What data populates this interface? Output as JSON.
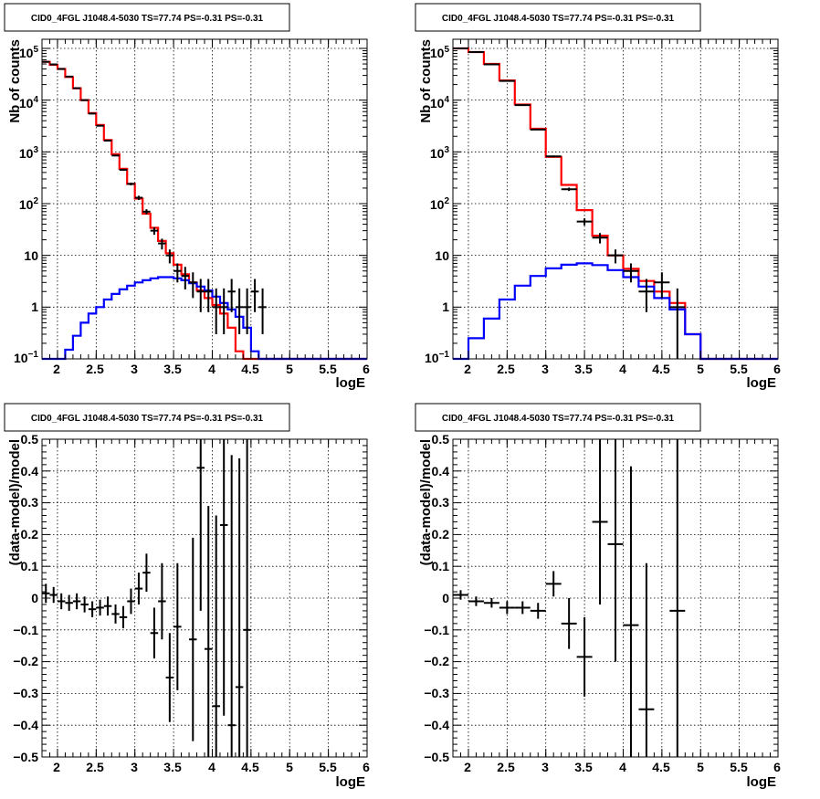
{
  "chart_data": [
    {
      "type": "histogram",
      "title": "CID0_4FGL J1048.4-5030 TS=77.74 PS=-0.31 PS=-0.31",
      "xlabel": "logE",
      "ylabel": "Nb of counts",
      "xlim": [
        1.8,
        6.0
      ],
      "ylim": [
        0.1,
        150000
      ],
      "yscale": "log",
      "grid": true,
      "x_ticks": [
        "2",
        "2.5",
        "3",
        "3.5",
        "4",
        "4.5",
        "5",
        "5.5",
        "6"
      ],
      "y_ticks": [
        {
          "value": 0.1,
          "base": "10",
          "exp": "−1"
        },
        {
          "value": 1,
          "base": "1",
          "exp": ""
        },
        {
          "value": 10,
          "base": "10",
          "exp": ""
        },
        {
          "value": 100,
          "base": "10",
          "exp": "2"
        },
        {
          "value": 1000,
          "base": "10",
          "exp": "3"
        },
        {
          "value": 10000,
          "base": "10",
          "exp": "4"
        },
        {
          "value": 100000,
          "base": "10",
          "exp": "5"
        }
      ],
      "bin_edges_start": 1.8,
      "bin_width": 0.1,
      "series": [
        {
          "color": "#ff0000",
          "values": [
            55000,
            48000,
            40000,
            28000,
            17000,
            10000,
            5600,
            3300,
            1700,
            900,
            470,
            240,
            125,
            64,
            34,
            19,
            11,
            6.6,
            4.3,
            3.0,
            2.1,
            1.5,
            1.1,
            0.75,
            0.4,
            0.14,
            0.1,
            0.1,
            0.1,
            0.1,
            0.1,
            0.1,
            0.1,
            0.1,
            0.1,
            0.1,
            0.1,
            0.1,
            0.1,
            0.1,
            0.1,
            0.1
          ]
        },
        {
          "color": "#0000ff",
          "values": [
            0.1,
            0.1,
            0.1,
            0.15,
            0.28,
            0.5,
            0.75,
            1.0,
            1.4,
            1.8,
            2.2,
            2.6,
            3.0,
            3.3,
            3.6,
            3.8,
            3.8,
            3.6,
            3.3,
            2.9,
            2.5,
            2.1,
            1.6,
            1.2,
            0.9,
            0.65,
            0.4,
            0.14,
            0.1,
            0.1,
            0.1,
            0.1,
            0.1,
            0.1,
            0.1,
            0.1,
            0.1,
            0.1,
            0.1,
            0.1,
            0.1,
            0.1
          ]
        }
      ],
      "data_points": [
        {
          "x": 1.85,
          "y": 55000,
          "ylo": 54500,
          "yhi": 55500
        },
        {
          "x": 1.95,
          "y": 49000,
          "ylo": 48500,
          "yhi": 49500
        },
        {
          "x": 2.05,
          "y": 40000,
          "ylo": 39600,
          "yhi": 40400
        },
        {
          "x": 2.15,
          "y": 28500,
          "ylo": 28200,
          "yhi": 28800
        },
        {
          "x": 2.25,
          "y": 17000,
          "ylo": 16800,
          "yhi": 17200
        },
        {
          "x": 2.35,
          "y": 10000,
          "ylo": 9900,
          "yhi": 10100
        },
        {
          "x": 2.45,
          "y": 5500,
          "ylo": 5420,
          "yhi": 5580
        },
        {
          "x": 2.55,
          "y": 3200,
          "ylo": 3140,
          "yhi": 3260
        },
        {
          "x": 2.65,
          "y": 1650,
          "ylo": 1610,
          "yhi": 1690
        },
        {
          "x": 2.75,
          "y": 850,
          "ylo": 820,
          "yhi": 880
        },
        {
          "x": 2.85,
          "y": 450,
          "ylo": 430,
          "yhi": 470
        },
        {
          "x": 2.95,
          "y": 240,
          "ylo": 225,
          "yhi": 255
        },
        {
          "x": 3.05,
          "y": 130,
          "ylo": 118,
          "yhi": 142
        },
        {
          "x": 3.15,
          "y": 70,
          "ylo": 62,
          "yhi": 78
        },
        {
          "x": 3.25,
          "y": 30,
          "ylo": 25,
          "yhi": 35
        },
        {
          "x": 3.35,
          "y": 17,
          "ylo": 13,
          "yhi": 21
        },
        {
          "x": 3.45,
          "y": 10,
          "ylo": 7,
          "yhi": 13
        },
        {
          "x": 3.55,
          "y": 5,
          "ylo": 3,
          "yhi": 7
        },
        {
          "x": 3.65,
          "y": 4,
          "ylo": 2.2,
          "yhi": 6
        },
        {
          "x": 3.75,
          "y": 3,
          "ylo": 1.5,
          "yhi": 4.7
        },
        {
          "x": 3.85,
          "y": 2,
          "ylo": 0.8,
          "yhi": 3.5
        },
        {
          "x": 3.95,
          "y": 2,
          "ylo": 0.8,
          "yhi": 3.5
        },
        {
          "x": 4.05,
          "y": 1,
          "ylo": 0.3,
          "yhi": 2.3
        },
        {
          "x": 4.15,
          "y": 1,
          "ylo": 0.3,
          "yhi": 2.3
        },
        {
          "x": 4.25,
          "y": 2,
          "ylo": 0.8,
          "yhi": 3.5
        },
        {
          "x": 4.35,
          "y": 1,
          "ylo": 0.3,
          "yhi": 2.3
        },
        {
          "x": 4.45,
          "y": 1,
          "ylo": 0.3,
          "yhi": 2.3
        },
        {
          "x": 4.55,
          "y": 2,
          "ylo": 0.8,
          "yhi": 3.5
        },
        {
          "x": 4.65,
          "y": 1,
          "ylo": 0.3,
          "yhi": 2.3
        }
      ],
      "data_half_width": 0.05
    },
    {
      "type": "histogram",
      "title": "CID0_4FGL J1048.4-5030 TS=77.74 PS=-0.31 PS=-0.31",
      "xlabel": "logE",
      "ylabel": "Nb of counts",
      "xlim": [
        1.8,
        6.0
      ],
      "ylim": [
        0.1,
        150000
      ],
      "yscale": "log",
      "grid": true,
      "x_ticks": [
        "2",
        "2.5",
        "3",
        "3.5",
        "4",
        "4.5",
        "5",
        "5.5",
        "6"
      ],
      "y_ticks": [
        {
          "value": 0.1,
          "base": "10",
          "exp": "−1"
        },
        {
          "value": 1,
          "base": "1",
          "exp": ""
        },
        {
          "value": 10,
          "base": "10",
          "exp": ""
        },
        {
          "value": 100,
          "base": "10",
          "exp": "2"
        },
        {
          "value": 1000,
          "base": "10",
          "exp": "3"
        },
        {
          "value": 10000,
          "base": "10",
          "exp": "4"
        },
        {
          "value": 100000,
          "base": "10",
          "exp": "5"
        }
      ],
      "bin_edges_start": 1.8,
      "bin_width": 0.2,
      "series": [
        {
          "color": "#ff0000",
          "values": [
            100000,
            85000,
            50000,
            24000,
            8200,
            2800,
            800,
            230,
            75,
            24,
            10,
            5.5,
            3.2,
            2.0,
            1.2,
            0.3,
            0.1,
            0.1,
            0.1,
            0.1,
            0.1
          ]
        },
        {
          "color": "#0000ff",
          "values": [
            0.1,
            0.25,
            0.6,
            1.4,
            2.6,
            4.0,
            5.6,
            6.6,
            7.0,
            6.5,
            5.2,
            3.8,
            2.5,
            1.5,
            0.9,
            0.3,
            0.1,
            0.1,
            0.1,
            0.1,
            0.1
          ]
        }
      ],
      "data_points": [
        {
          "x": 1.9,
          "y": 100000,
          "ylo": 99500,
          "yhi": 100500
        },
        {
          "x": 2.1,
          "y": 85000,
          "ylo": 84500,
          "yhi": 85500
        },
        {
          "x": 2.3,
          "y": 49000,
          "ylo": 48600,
          "yhi": 49400
        },
        {
          "x": 2.5,
          "y": 23500,
          "ylo": 23200,
          "yhi": 23800
        },
        {
          "x": 2.7,
          "y": 8000,
          "ylo": 7900,
          "yhi": 8100
        },
        {
          "x": 2.9,
          "y": 2700,
          "ylo": 2650,
          "yhi": 2750
        },
        {
          "x": 3.1,
          "y": 820,
          "ylo": 790,
          "yhi": 850
        },
        {
          "x": 3.3,
          "y": 190,
          "ylo": 176,
          "yhi": 204
        },
        {
          "x": 3.5,
          "y": 45,
          "ylo": 38,
          "yhi": 52
        },
        {
          "x": 3.7,
          "y": 22,
          "ylo": 17,
          "yhi": 27
        },
        {
          "x": 3.9,
          "y": 10,
          "ylo": 7,
          "yhi": 13
        },
        {
          "x": 4.1,
          "y": 5,
          "ylo": 3,
          "yhi": 7
        },
        {
          "x": 4.3,
          "y": 2,
          "ylo": 0.8,
          "yhi": 3.5
        },
        {
          "x": 4.5,
          "y": 3,
          "ylo": 1.5,
          "yhi": 4.7
        },
        {
          "x": 4.7,
          "y": 1,
          "ylo": 0.1,
          "yhi": 2.3
        }
      ],
      "data_half_width": 0.1
    },
    {
      "type": "scatter",
      "title": "CID0_4FGL J1048.4-5030 TS=77.74 PS=-0.31 PS=-0.31",
      "xlabel": "logE",
      "ylabel": "(data-model)/model",
      "xlim": [
        1.8,
        6.0
      ],
      "ylim": [
        -0.5,
        0.5
      ],
      "yscale": "linear",
      "grid": true,
      "x_ticks": [
        "2",
        "2.5",
        "3",
        "3.5",
        "4",
        "4.5",
        "5",
        "5.5",
        "6"
      ],
      "y_ticks": [
        "−0.5",
        "−0.4",
        "−0.3",
        "−0.2",
        "−0.1",
        "0",
        "0.1",
        "0.2",
        "0.3",
        "0.4",
        "0.5"
      ],
      "data_half_width": 0.05,
      "data_points": [
        {
          "x": 1.85,
          "y": 0.015,
          "err": 0.03
        },
        {
          "x": 1.95,
          "y": 0.01,
          "err": 0.025
        },
        {
          "x": 2.05,
          "y": -0.01,
          "err": 0.025
        },
        {
          "x": 2.15,
          "y": -0.015,
          "err": 0.025
        },
        {
          "x": 2.25,
          "y": -0.01,
          "err": 0.025
        },
        {
          "x": 2.35,
          "y": -0.02,
          "err": 0.025
        },
        {
          "x": 2.45,
          "y": -0.035,
          "err": 0.025
        },
        {
          "x": 2.55,
          "y": -0.03,
          "err": 0.025
        },
        {
          "x": 2.65,
          "y": -0.025,
          "err": 0.03
        },
        {
          "x": 2.75,
          "y": -0.05,
          "err": 0.03
        },
        {
          "x": 2.85,
          "y": -0.06,
          "err": 0.035
        },
        {
          "x": 2.95,
          "y": -0.01,
          "err": 0.04
        },
        {
          "x": 3.05,
          "y": 0.03,
          "err": 0.05
        },
        {
          "x": 3.15,
          "y": 0.08,
          "err": 0.06
        },
        {
          "x": 3.25,
          "y": -0.11,
          "err": 0.08
        },
        {
          "x": 3.35,
          "y": -0.01,
          "err": 0.12
        },
        {
          "x": 3.45,
          "y": -0.25,
          "err": 0.14
        },
        {
          "x": 3.55,
          "y": -0.09,
          "err": 0.2
        },
        {
          "x": 3.75,
          "y": -0.13,
          "err": 0.32
        },
        {
          "x": 3.85,
          "y": 0.41,
          "err": 0.45
        },
        {
          "x": 3.95,
          "y": -0.16,
          "err": 0.45
        },
        {
          "x": 4.05,
          "y": -0.34,
          "err": 0.6
        },
        {
          "x": 4.15,
          "y": 0.23,
          "err": 0.6
        },
        {
          "x": 4.25,
          "y": -0.4,
          "err": 0.85
        },
        {
          "x": 4.35,
          "y": -0.28,
          "err": 0.72
        },
        {
          "x": 4.45,
          "y": -0.1,
          "err": 1.0
        }
      ]
    },
    {
      "type": "scatter",
      "title": "CID0_4FGL J1048.4-5030 TS=77.74 PS=-0.31 PS=-0.31",
      "xlabel": "logE",
      "ylabel": "(data-model)/model",
      "xlim": [
        1.8,
        6.0
      ],
      "ylim": [
        -0.5,
        0.5
      ],
      "yscale": "linear",
      "grid": true,
      "x_ticks": [
        "2",
        "2.5",
        "3",
        "3.5",
        "4",
        "4.5",
        "5",
        "5.5",
        "6"
      ],
      "y_ticks": [
        "−0.5",
        "−0.4",
        "−0.3",
        "−0.2",
        "−0.1",
        "0",
        "0.1",
        "0.2",
        "0.3",
        "0.4",
        "0.5"
      ],
      "data_half_width": 0.1,
      "data_points": [
        {
          "x": 1.9,
          "y": 0.01,
          "err": 0.015
        },
        {
          "x": 2.1,
          "y": -0.01,
          "err": 0.015
        },
        {
          "x": 2.3,
          "y": -0.015,
          "err": 0.015
        },
        {
          "x": 2.5,
          "y": -0.03,
          "err": 0.02
        },
        {
          "x": 2.7,
          "y": -0.03,
          "err": 0.02
        },
        {
          "x": 2.9,
          "y": -0.04,
          "err": 0.025
        },
        {
          "x": 3.1,
          "y": 0.045,
          "err": 0.04
        },
        {
          "x": 3.3,
          "y": -0.08,
          "err": 0.08
        },
        {
          "x": 3.5,
          "y": -0.185,
          "err": 0.125
        },
        {
          "x": 3.7,
          "y": 0.24,
          "err": 0.26
        },
        {
          "x": 3.9,
          "y": 0.17,
          "err": 0.37
        },
        {
          "x": 4.1,
          "y": -0.085,
          "err": 0.5
        },
        {
          "x": 4.3,
          "y": -0.35,
          "err": 0.46
        },
        {
          "x": 4.7,
          "y": -0.04,
          "err": 1.0
        }
      ]
    }
  ]
}
